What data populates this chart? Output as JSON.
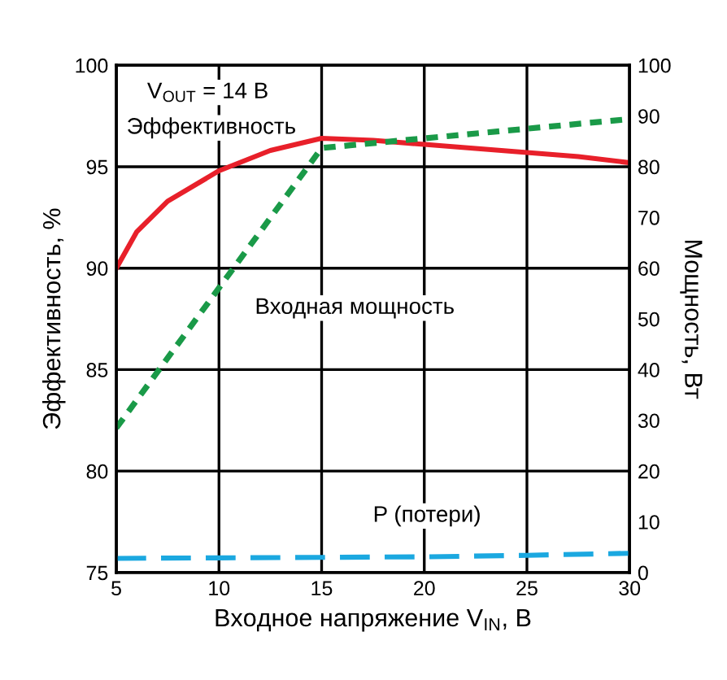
{
  "chart_data": {
    "type": "line",
    "xlabel": "Входное напряжение V$_{IN}$, В",
    "ylabel": "Эффективность, %",
    "y2label": "Мощность, Вт",
    "xlim": [
      5,
      30
    ],
    "xticks": [
      5,
      10,
      15,
      20,
      25,
      30
    ],
    "ylim": [
      75,
      100
    ],
    "yticks": [
      75,
      80,
      85,
      90,
      95,
      100
    ],
    "y2lim": [
      0,
      100
    ],
    "y2ticks": [
      0,
      10,
      20,
      30,
      40,
      50,
      60,
      70,
      80,
      90,
      100
    ],
    "grid": true,
    "legend": false,
    "annotations": [
      "V$_{OUT}$ = 14 В"
    ],
    "series": [
      {
        "name": "Эффективность",
        "color": "#e8202a",
        "line_style": "solid",
        "x": [
          5,
          6,
          7.5,
          10,
          12.5,
          15,
          17.5,
          20,
          22.5,
          25,
          27.5,
          30
        ],
        "values": [
          90,
          91.8,
          93.3,
          94.8,
          95.8,
          96.4,
          96.3,
          96.1,
          95.9,
          95.7,
          95.5,
          95.2
        ]
      },
      {
        "name": "Входная мощность",
        "color": "#1a9a48",
        "line_style": "dotted",
        "axis": "y2",
        "x": [
          5,
          15,
          30
        ],
        "values": [
          28.5,
          83.7,
          89.4
        ]
      },
      {
        "name": "P (потери)",
        "color": "#1ba8e0",
        "line_style": "dashed",
        "axis": "y2",
        "x": [
          5,
          10,
          15,
          20,
          25,
          30
        ],
        "values": [
          2.8,
          2.9,
          3.0,
          3.1,
          3.4,
          3.8
        ]
      }
    ]
  }
}
